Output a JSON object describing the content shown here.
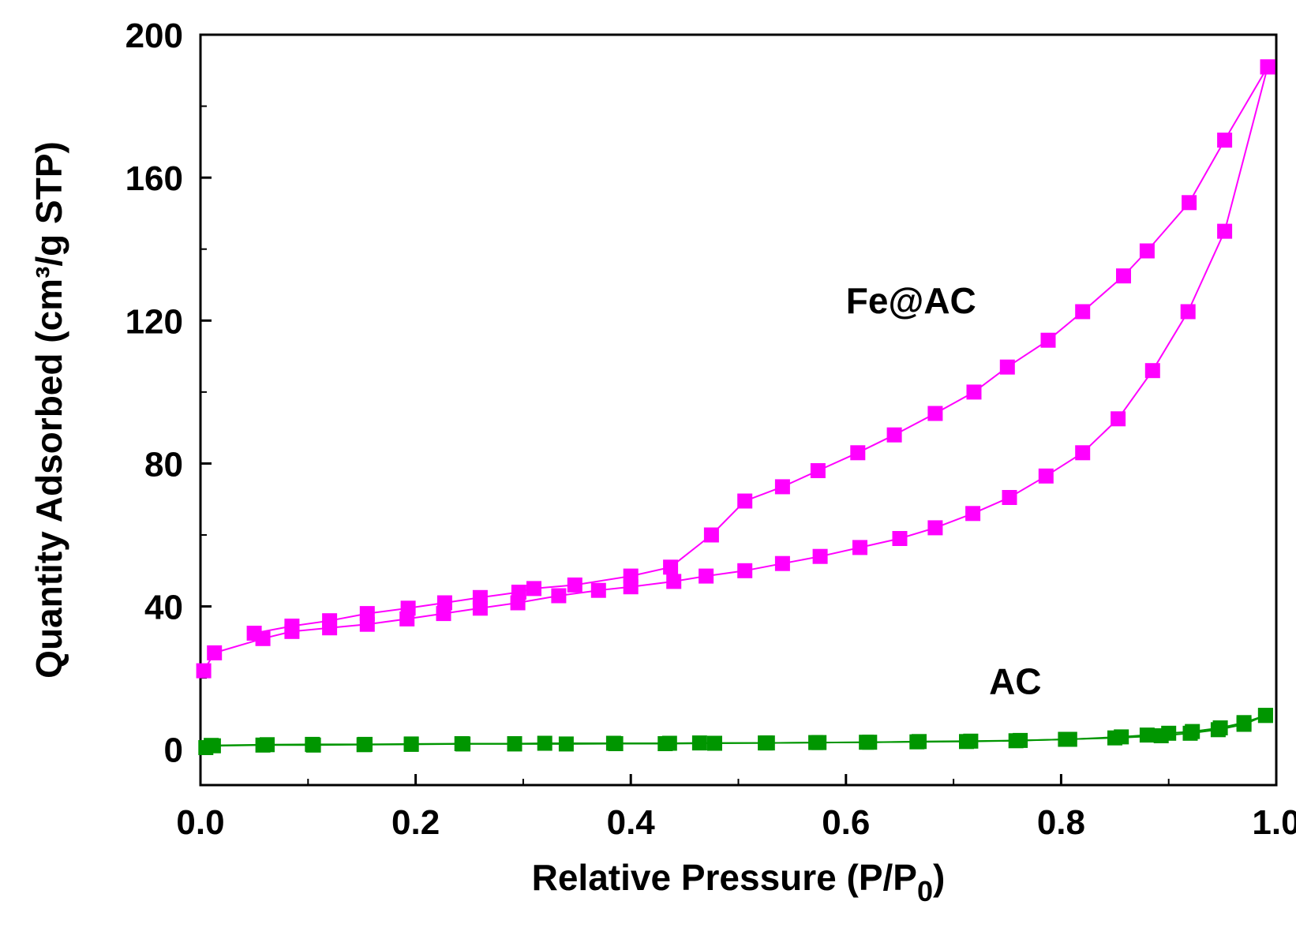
{
  "chart_data": {
    "type": "line",
    "title": "",
    "xlabel": "Relative Pressure (P/P",
    "xlabel_subscript": "0",
    "xlabel_close": ")",
    "ylabel": "Quantity Adsorbed (cm³/g STP)",
    "xlim": [
      0.0,
      1.0
    ],
    "ylim": [
      -10,
      200
    ],
    "x_ticks": [
      0.0,
      0.2,
      0.4,
      0.6,
      0.8,
      1.0
    ],
    "x_tick_labels": [
      "0.0",
      "0.2",
      "0.4",
      "0.6",
      "0.8",
      "1.0"
    ],
    "x_minor_ticks": [
      0.1,
      0.3,
      0.5,
      0.7,
      0.9
    ],
    "y_ticks": [
      0,
      40,
      80,
      120,
      160,
      200
    ],
    "y_tick_labels": [
      "0",
      "40",
      "80",
      "120",
      "160",
      "200"
    ],
    "y_minor_ticks": [
      20,
      60,
      100,
      140,
      180
    ],
    "grid": false,
    "legend": "none",
    "series": [
      {
        "name": "Fe@AC adsorption",
        "label": "Fe@AC",
        "color": "#ff00ff",
        "marker": "square",
        "x": [
          0.003,
          0.013,
          0.058,
          0.085,
          0.12,
          0.155,
          0.192,
          0.226,
          0.26,
          0.295,
          0.333,
          0.37,
          0.4,
          0.44,
          0.47,
          0.506,
          0.541,
          0.576,
          0.613,
          0.65,
          0.683,
          0.718,
          0.752,
          0.786,
          0.82,
          0.853,
          0.885,
          0.918,
          0.952,
          0.992
        ],
        "y": [
          22,
          27,
          31,
          33,
          34,
          35,
          36.5,
          38,
          39.5,
          41,
          43,
          44.5,
          45.5,
          47,
          48.5,
          50,
          52,
          54,
          56.5,
          59,
          62,
          66,
          70.5,
          76.5,
          83,
          92.5,
          106,
          122.5,
          145,
          191
        ]
      },
      {
        "name": "Fe@AC desorption",
        "label": "",
        "color": "#ff00ff",
        "marker": "square",
        "x": [
          0.992,
          0.952,
          0.919,
          0.88,
          0.858,
          0.82,
          0.788,
          0.75,
          0.719,
          0.683,
          0.645,
          0.611,
          0.574,
          0.541,
          0.506,
          0.475,
          0.437,
          0.4,
          0.348,
          0.31,
          0.296,
          0.26,
          0.227,
          0.193,
          0.155,
          0.12,
          0.085,
          0.05
        ],
        "y": [
          191,
          170.5,
          153,
          139.5,
          132.5,
          122.5,
          114.5,
          107,
          100,
          94,
          88,
          83,
          78,
          73.5,
          69.5,
          60,
          51,
          48.5,
          46,
          45,
          44,
          42.5,
          41,
          39.5,
          38,
          36,
          34.5,
          32.5
        ]
      },
      {
        "name": "AC adsorption",
        "label": "AC",
        "color": "#009600",
        "marker": "square",
        "x": [
          0.005,
          0.012,
          0.058,
          0.105,
          0.152,
          0.196,
          0.244,
          0.292,
          0.34,
          0.386,
          0.432,
          0.478,
          0.525,
          0.572,
          0.619,
          0.666,
          0.712,
          0.758,
          0.804,
          0.85,
          0.893,
          0.92,
          0.946,
          0.97,
          0.99
        ],
        "y": [
          0.5,
          1.0,
          1.2,
          1.2,
          1.3,
          1.4,
          1.5,
          1.5,
          1.5,
          1.6,
          1.6,
          1.7,
          1.8,
          1.9,
          2.0,
          2.1,
          2.2,
          2.4,
          2.8,
          3.2,
          3.8,
          4.5,
          5.5,
          7.0,
          9.5
        ]
      },
      {
        "name": "AC desorption",
        "label": "",
        "color": "#009600",
        "marker": "square",
        "x": [
          0.99,
          0.97,
          0.948,
          0.922,
          0.9,
          0.88,
          0.856,
          0.808,
          0.762,
          0.716,
          0.668,
          0.622,
          0.575,
          0.527,
          0.464,
          0.436,
          0.384,
          0.32,
          0.292,
          0.243,
          0.196,
          0.153,
          0.104,
          0.062,
          0.01
        ],
        "y": [
          9.5,
          7.5,
          6.0,
          5.0,
          4.5,
          4.0,
          3.5,
          2.8,
          2.5,
          2.3,
          2.2,
          2.0,
          1.9,
          1.8,
          1.8,
          1.7,
          1.7,
          1.7,
          1.6,
          1.6,
          1.5,
          1.4,
          1.4,
          1.3,
          1.1
        ]
      }
    ],
    "annotations": [
      {
        "text": "Fe@AC",
        "at_x": 0.6,
        "at_y": 122
      },
      {
        "text": "AC",
        "at_x": 0.733,
        "at_y": 15.5
      }
    ]
  }
}
